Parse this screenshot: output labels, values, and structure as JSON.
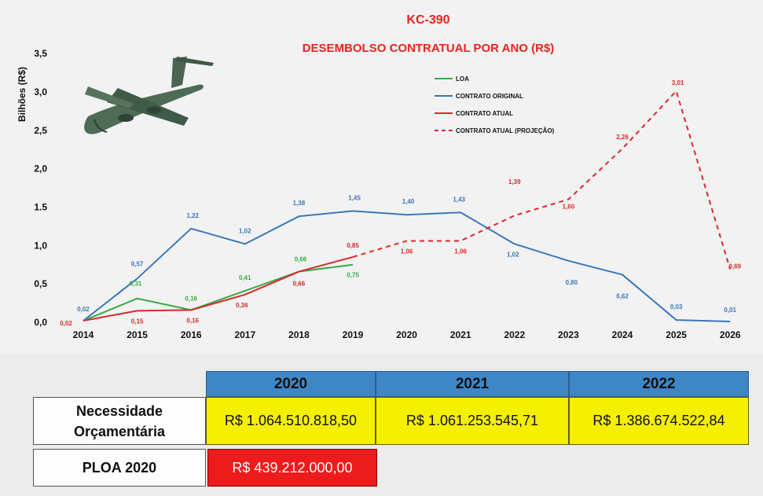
{
  "chart_data": {
    "type": "line",
    "title": "KC-390",
    "subtitle": "DESEMBOLSO CONTRATUAL POR ANO (R$)",
    "ylabel": "Bilhões (R$)",
    "xlabel": "",
    "ylim": [
      0,
      3.5
    ],
    "yticks": [
      "0,0",
      "0,5",
      "1,0",
      "1.5",
      "2,0",
      "2,5",
      "3,0",
      "3,5"
    ],
    "categories": [
      "2014",
      "2015",
      "2016",
      "2017",
      "2018",
      "2019",
      "2020",
      "2021",
      "2022",
      "2023",
      "2024",
      "2025",
      "2026"
    ],
    "legend_position": "top-center",
    "grid": false,
    "series": [
      {
        "name": "LOA",
        "color": "#3aaa45",
        "style": "solid",
        "values": [
          0.02,
          0.31,
          0.16,
          0.41,
          0.66,
          0.75,
          null,
          null,
          null,
          null,
          null,
          null,
          null
        ],
        "labels": [
          "",
          "0,31",
          "0,16",
          "0,41",
          "0,66",
          "0,75",
          "",
          "",
          "",
          "",
          "",
          "",
          ""
        ]
      },
      {
        "name": "CONTRATO ORIGINAL",
        "color": "#3a78b8",
        "style": "solid",
        "values": [
          0.02,
          0.57,
          1.22,
          1.02,
          1.38,
          1.45,
          1.4,
          1.43,
          1.02,
          0.8,
          0.62,
          0.03,
          0.01
        ],
        "labels": [
          "0,02",
          "0,57",
          "1,22",
          "1,02",
          "1,38",
          "1,45",
          "1,40",
          "1,43",
          "1,02",
          "0,80",
          "0,62",
          "0,03",
          "0,01"
        ]
      },
      {
        "name": "CONTRATO ATUAL",
        "color": "#d42a2a",
        "style": "solid",
        "values": [
          0.02,
          0.15,
          0.16,
          0.36,
          0.66,
          0.85,
          null,
          null,
          null,
          null,
          null,
          null,
          null
        ],
        "labels": [
          "0,02",
          "0,15",
          "0,16",
          "0,36",
          "0,66",
          "0,85",
          "",
          "",
          "",
          "",
          "",
          "",
          ""
        ]
      },
      {
        "name": "CONTRATO ATUAL (PROJEÇÃO)",
        "color": "#e0262b",
        "style": "dashed",
        "values": [
          null,
          null,
          null,
          null,
          null,
          0.85,
          1.06,
          1.06,
          1.39,
          1.6,
          2.26,
          3.01,
          0.69
        ],
        "labels": [
          "",
          "",
          "",
          "",
          "",
          "",
          "1,06",
          "1,06",
          "1,39",
          "1,60",
          "2,26",
          "3,01",
          "0,69"
        ]
      }
    ]
  },
  "table": {
    "headers": [
      "2020",
      "2021",
      "2022"
    ],
    "rows": [
      {
        "label_line1": "Necessidade",
        "label_line2": "Orçamentária",
        "values": [
          "R$ 1.064.510.818,50",
          "R$ 1.061.253.545,71",
          "R$ 1.386.674.522,84"
        ]
      },
      {
        "label_line1": "PLOA 2020",
        "values": [
          "R$ 439.212.000,00"
        ]
      }
    ]
  },
  "colors": {
    "header_blue": "#3e86c6",
    "value_yellow": "#f4f000",
    "ploa_red": "#ec1c1c",
    "title_red": "#e8231f"
  },
  "icons": {
    "aircraft": "kc390-aircraft-icon"
  }
}
